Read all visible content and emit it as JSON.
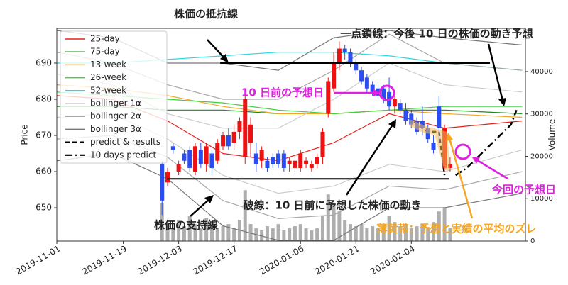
{
  "chart_data": {
    "type": "candlestick",
    "y_label": "Price",
    "y2_label": "Volume",
    "xlim": [
      0,
      84.6
    ],
    "xticks": [
      {
        "value": 0,
        "label": "2019-11-01"
      },
      {
        "value": 12,
        "label": "2019-11-19"
      },
      {
        "value": 22,
        "label": "2019-12-03"
      },
      {
        "value": 32,
        "label": "2019-12-17"
      },
      {
        "value": 44,
        "label": "2020-01-06"
      },
      {
        "value": 54,
        "label": "2020-01-21"
      },
      {
        "value": 64,
        "label": "2020-02-04"
      }
    ],
    "ylim": [
      640.8,
      699.6
    ],
    "yticks": [
      650,
      660,
      670,
      680,
      690
    ],
    "y2lim": [
      0,
      50200
    ],
    "y2ticks": [
      0,
      10000,
      20000,
      30000,
      40000
    ],
    "up_color": "#ee1111",
    "down_color": "#2a4cf0",
    "volume_color": "#9a9a9a",
    "candles": [
      {
        "x": 19,
        "open": 662,
        "high": 663,
        "low": 648,
        "close": 652
      },
      {
        "x": 20,
        "open": 657,
        "high": 661,
        "low": 656,
        "close": 660
      },
      {
        "x": 21,
        "open": 667,
        "high": 668,
        "low": 665,
        "close": 666
      },
      {
        "x": 22,
        "open": 660,
        "high": 663,
        "low": 659,
        "close": 662
      },
      {
        "x": 23,
        "open": 665,
        "high": 666,
        "low": 662,
        "close": 663
      },
      {
        "x": 24,
        "open": 666,
        "high": 667,
        "low": 660,
        "close": 661
      },
      {
        "x": 25,
        "open": 660,
        "high": 668,
        "low": 659,
        "close": 667
      },
      {
        "x": 26,
        "open": 666,
        "high": 668,
        "low": 661,
        "close": 662
      },
      {
        "x": 27,
        "open": 662,
        "high": 668,
        "low": 660,
        "close": 667
      },
      {
        "x": 28,
        "open": 665,
        "high": 666,
        "low": 659,
        "close": 661
      },
      {
        "x": 29,
        "open": 663,
        "high": 669,
        "low": 662,
        "close": 668
      },
      {
        "x": 30,
        "open": 667,
        "high": 671,
        "low": 666,
        "close": 670
      },
      {
        "x": 31,
        "open": 670,
        "high": 672,
        "low": 666,
        "close": 667
      },
      {
        "x": 32,
        "open": 668,
        "high": 673,
        "low": 666,
        "close": 671
      },
      {
        "x": 33,
        "open": 671,
        "high": 675,
        "low": 669,
        "close": 674
      },
      {
        "x": 34,
        "open": 664,
        "high": 682,
        "low": 662,
        "close": 680
      },
      {
        "x": 35,
        "open": 668,
        "high": 675,
        "low": 664,
        "close": 673
      },
      {
        "x": 36,
        "open": 665,
        "high": 668,
        "low": 660,
        "close": 662
      },
      {
        "x": 37,
        "open": 663,
        "high": 667,
        "low": 661,
        "close": 666
      },
      {
        "x": 38,
        "open": 663,
        "high": 664,
        "low": 660,
        "close": 661
      },
      {
        "x": 39,
        "open": 664,
        "high": 665,
        "low": 661,
        "close": 662
      },
      {
        "x": 40,
        "open": 665,
        "high": 666,
        "low": 661,
        "close": 662
      },
      {
        "x": 41,
        "open": 665,
        "high": 666,
        "low": 660,
        "close": 661
      },
      {
        "x": 42,
        "open": 662,
        "high": 664,
        "low": 660,
        "close": 663
      },
      {
        "x": 43,
        "open": 661,
        "high": 664,
        "low": 660,
        "close": 663
      },
      {
        "x": 44,
        "open": 661,
        "high": 666,
        "low": 660,
        "close": 665
      },
      {
        "x": 45,
        "open": 662,
        "high": 664,
        "low": 661,
        "close": 663
      },
      {
        "x": 46,
        "open": 661,
        "high": 663,
        "low": 660,
        "close": 662
      },
      {
        "x": 47,
        "open": 662,
        "high": 665,
        "low": 661,
        "close": 664
      },
      {
        "x": 48,
        "open": 664,
        "high": 672,
        "low": 662,
        "close": 671
      },
      {
        "x": 49,
        "open": 676,
        "high": 686,
        "low": 675,
        "close": 685
      },
      {
        "x": 50,
        "open": 683,
        "high": 693,
        "low": 682,
        "close": 690
      },
      {
        "x": 51,
        "open": 690,
        "high": 696,
        "low": 688,
        "close": 694
      },
      {
        "x": 52,
        "open": 694,
        "high": 695,
        "low": 691,
        "close": 693
      },
      {
        "x": 53,
        "open": 693,
        "high": 694,
        "low": 689,
        "close": 690
      },
      {
        "x": 54,
        "open": 690,
        "high": 691,
        "low": 687,
        "close": 688
      },
      {
        "x": 55,
        "open": 688,
        "high": 689,
        "low": 684,
        "close": 685
      },
      {
        "x": 56,
        "open": 686,
        "high": 687,
        "low": 682,
        "close": 683
      },
      {
        "x": 57,
        "open": 684,
        "high": 685,
        "low": 681,
        "close": 682
      },
      {
        "x": 58,
        "open": 683,
        "high": 684,
        "low": 680,
        "close": 681
      },
      {
        "x": 59,
        "open": 683,
        "high": 684,
        "low": 679,
        "close": 680
      },
      {
        "x": 60,
        "open": 682,
        "high": 686,
        "low": 677,
        "close": 678
      },
      {
        "x": 61,
        "open": 678,
        "high": 681,
        "low": 676,
        "close": 680
      },
      {
        "x": 62,
        "open": 679,
        "high": 680,
        "low": 676,
        "close": 677
      },
      {
        "x": 63,
        "open": 677,
        "high": 679,
        "low": 673,
        "close": 674
      },
      {
        "x": 64,
        "open": 676,
        "high": 677,
        "low": 672,
        "close": 673
      },
      {
        "x": 65,
        "open": 674,
        "high": 675,
        "low": 670,
        "close": 671
      },
      {
        "x": 66,
        "open": 674,
        "high": 678,
        "low": 670,
        "close": 672
      },
      {
        "x": 67,
        "open": 672,
        "high": 673,
        "low": 668,
        "close": 669
      },
      {
        "x": 68,
        "open": 668,
        "high": 670,
        "low": 665,
        "close": 666
      },
      {
        "x": 69,
        "open": 678,
        "high": 681,
        "low": 668,
        "close": 672
      },
      {
        "x": 70,
        "open": 661,
        "high": 673,
        "low": 660,
        "close": 672
      },
      {
        "x": 71,
        "open": 661,
        "high": 664,
        "low": 660,
        "close": 662
      }
    ],
    "volume": [
      9000,
      4000,
      3000,
      5000,
      3500,
      6000,
      4000,
      3000,
      5500,
      4500,
      3000,
      3500,
      4000,
      3000,
      5000,
      12000,
      4000,
      3000,
      2500,
      3500,
      3000,
      4000,
      2500,
      3000,
      3500,
      4000,
      3000,
      2500,
      3000,
      6000,
      11000,
      9000,
      7000,
      5000,
      4000,
      3500,
      4000,
      3000,
      3500,
      3000,
      4000,
      6000,
      4500,
      3500,
      4000,
      3000,
      3500,
      4000,
      3000,
      4500,
      7000,
      8000,
      3000
    ],
    "series": [
      {
        "name": "25-day",
        "color": "#e8201a",
        "x": [
          0,
          10,
          20,
          30,
          40,
          50,
          60,
          70,
          84
        ],
        "values": [
          681,
          680,
          674,
          665,
          663,
          668,
          676,
          672,
          674
        ]
      },
      {
        "name": "75-day",
        "color": "#1a8c1a",
        "x": [
          0,
          10,
          20,
          30,
          40,
          50,
          60,
          70,
          84
        ],
        "values": [
          678,
          678,
          677,
          677,
          676,
          676,
          677,
          677,
          676
        ]
      },
      {
        "name": "13-week",
        "color": "#f5a623",
        "x": [
          0,
          10,
          20,
          30,
          40,
          50,
          60,
          70,
          84
        ],
        "values": [
          684,
          683,
          681,
          678,
          676,
          676,
          677,
          676,
          675
        ]
      },
      {
        "name": "26-week",
        "color": "#3ed13e",
        "x": [
          0,
          10,
          20,
          30,
          40,
          50,
          60,
          70,
          84
        ],
        "values": [
          682,
          681,
          680,
          679,
          677,
          676,
          677,
          678,
          678
        ]
      },
      {
        "name": "52-week",
        "color": "#2ad8e0",
        "x": [
          0,
          10,
          20,
          30,
          40,
          50,
          60,
          70,
          84
        ],
        "values": [
          690,
          690,
          691,
          692,
          693,
          693,
          692,
          690,
          688
        ]
      },
      {
        "name": "bollinger 1α",
        "color": "#cccccc",
        "x": [
          0,
          10,
          20,
          30,
          40,
          50,
          60,
          70,
          84
        ],
        "values": [
          687,
          684,
          676,
          672,
          672,
          680,
          690,
          684,
          682
        ],
        "lower": [
          675,
          676,
          669,
          659,
          654,
          656,
          662,
          660,
          666
        ]
      },
      {
        "name": "bollinger 2α",
        "color": "#a8a8a8",
        "x": [
          0,
          10,
          20,
          30,
          40,
          50,
          60,
          70,
          84
        ],
        "values": [
          693,
          690,
          684,
          680,
          680,
          688,
          698,
          690,
          688
        ],
        "lower": [
          669,
          670,
          664,
          652,
          647,
          648,
          656,
          655,
          660
        ]
      },
      {
        "name": "bollinger 3α",
        "color": "#777777",
        "x": [
          0,
          10,
          20,
          30,
          40,
          50,
          60,
          70,
          84
        ],
        "values": [
          699,
          697,
          690,
          690,
          688,
          697,
          699,
          697,
          695
        ],
        "lower": [
          663,
          665,
          658,
          645,
          641,
          641,
          650,
          650,
          654
        ]
      },
      {
        "name": "predict & results",
        "color": "#000000",
        "linestyle": "dashed",
        "x": [
          63,
          65,
          67,
          69,
          70
        ],
        "values": [
          677,
          673,
          671,
          671,
          659
        ]
      },
      {
        "name": "10 days predict",
        "color": "#000000",
        "linestyle": "dashdot",
        "x": [
          72,
          74,
          76,
          78,
          80,
          82,
          83
        ],
        "values": [
          659,
          661,
          664,
          667,
          670,
          673,
          677
        ]
      }
    ],
    "hlines": [
      {
        "value": 690,
        "x": [
          29.5,
          78.2
        ]
      },
      {
        "value": 658,
        "x": [
          19.9,
          70.8
        ]
      }
    ],
    "annotations": {
      "resistance": "株価の抵抗線",
      "support": "株価の支持線",
      "forecast": "一点鎖線：今後 10 日の株価の動き予想",
      "prev_day": "10 日前の予想日",
      "this_day": "今回の予想日",
      "dashed": "破線：10 日前に予想した株価の動き",
      "band": "薄黄帯：予想と実績の平均のズレ"
    }
  }
}
